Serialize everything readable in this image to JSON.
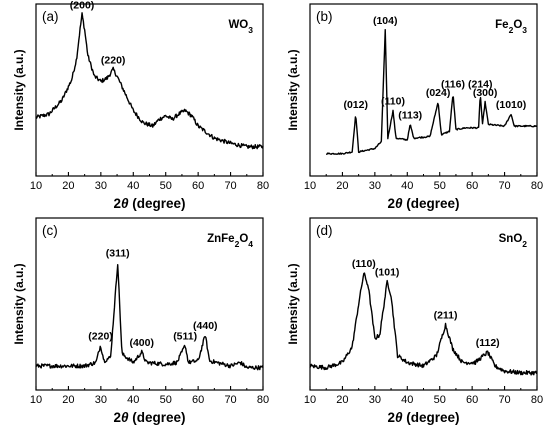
{
  "chart_data": [
    {
      "type": "line",
      "panel": "(a)",
      "material": "WO3",
      "material_parts": [
        {
          "t": "WO",
          "sub": false
        },
        {
          "t": "3",
          "sub": true
        }
      ],
      "xlabel": "2θ (degree)",
      "xlabel_parts": [
        {
          "t": "2",
          "it": false
        },
        {
          "t": "θ",
          "it": true
        },
        {
          "t": " (degree)",
          "it": false
        }
      ],
      "ylabel": "Intensity (a.u.)",
      "xlim": [
        10,
        80
      ],
      "ylim": [
        0,
        1
      ],
      "xticks": [
        "10",
        "20",
        "30",
        "40",
        "50",
        "60",
        "70",
        "80"
      ],
      "series": [
        {
          "values": [
            [
              10,
              0.34
            ],
            [
              14,
              0.36
            ],
            [
              18,
              0.44
            ],
            [
              21,
              0.56
            ],
            [
              22.5,
              0.68
            ],
            [
              23.5,
              0.84
            ],
            [
              24.2,
              0.94
            ],
            [
              25,
              0.85
            ],
            [
              26,
              0.7
            ],
            [
              28,
              0.58
            ],
            [
              30,
              0.55
            ],
            [
              32,
              0.57
            ],
            [
              33.8,
              0.62
            ],
            [
              35,
              0.58
            ],
            [
              37,
              0.5
            ],
            [
              40,
              0.38
            ],
            [
              43,
              0.31
            ],
            [
              46,
              0.29
            ],
            [
              48,
              0.33
            ],
            [
              50,
              0.35
            ],
            [
              52,
              0.33
            ],
            [
              54,
              0.36
            ],
            [
              56,
              0.38
            ],
            [
              58,
              0.35
            ],
            [
              60,
              0.29
            ],
            [
              65,
              0.22
            ],
            [
              70,
              0.19
            ],
            [
              75,
              0.17
            ],
            [
              80,
              0.17
            ]
          ]
        }
      ],
      "peak_labels": [
        {
          "text": "(200)",
          "x": 24.2,
          "y": 0.94
        },
        {
          "text": "(220)",
          "x": 33.8,
          "y": 0.62
        }
      ]
    },
    {
      "type": "line",
      "panel": "(b)",
      "material": "Fe2O3",
      "material_parts": [
        {
          "t": "Fe",
          "sub": false
        },
        {
          "t": "2",
          "sub": true
        },
        {
          "t": "O",
          "sub": false
        },
        {
          "t": "3",
          "sub": true
        }
      ],
      "xlabel": "2θ (degree)",
      "xlabel_parts": [
        {
          "t": "2",
          "it": false
        },
        {
          "t": "θ",
          "it": true
        },
        {
          "t": " (degree)",
          "it": false
        }
      ],
      "ylabel": "Intensity (a.u.)",
      "xlim": [
        10,
        80
      ],
      "ylim": [
        0,
        1
      ],
      "xticks": [
        "10",
        "20",
        "30",
        "40",
        "50",
        "60",
        "70",
        "80"
      ],
      "series": [
        {
          "values": [
            [
              15,
              0.13
            ],
            [
              20,
              0.13
            ],
            [
              23,
              0.14
            ],
            [
              24.1,
              0.36
            ],
            [
              25,
              0.14
            ],
            [
              30,
              0.16
            ],
            [
              32,
              0.2
            ],
            [
              33.2,
              0.85
            ],
            [
              34,
              0.22
            ],
            [
              35.6,
              0.38
            ],
            [
              36.5,
              0.22
            ],
            [
              40,
              0.21
            ],
            [
              40.9,
              0.3
            ],
            [
              42,
              0.22
            ],
            [
              47,
              0.23
            ],
            [
              49.5,
              0.43
            ],
            [
              50.5,
              0.24
            ],
            [
              53,
              0.26
            ],
            [
              54.1,
              0.48
            ],
            [
              55,
              0.27
            ],
            [
              58,
              0.28
            ],
            [
              62,
              0.28
            ],
            [
              62.5,
              0.48
            ],
            [
              63.2,
              0.3
            ],
            [
              64,
              0.43
            ],
            [
              65,
              0.3
            ],
            [
              70,
              0.29
            ],
            [
              72,
              0.36
            ],
            [
              73,
              0.29
            ],
            [
              80,
              0.29
            ]
          ]
        }
      ],
      "peak_labels": [
        {
          "text": "(012)",
          "x": 24.1,
          "y": 0.36
        },
        {
          "text": "(104)",
          "x": 33.2,
          "y": 0.85
        },
        {
          "text": "(110)",
          "x": 35.6,
          "y": 0.38
        },
        {
          "text": "(113)",
          "x": 40.9,
          "y": 0.3
        },
        {
          "text": "(024)",
          "x": 49.5,
          "y": 0.43
        },
        {
          "text": "(116)",
          "x": 54.1,
          "y": 0.48
        },
        {
          "text": "(214)",
          "x": 62.5,
          "y": 0.48
        },
        {
          "text": "(300)",
          "x": 64.0,
          "y": 0.43
        },
        {
          "text": "(1010)",
          "x": 72.0,
          "y": 0.36
        }
      ]
    },
    {
      "type": "line",
      "panel": "(c)",
      "material": "ZnFe2O4",
      "material_parts": [
        {
          "t": "ZnFe",
          "sub": false
        },
        {
          "t": "2",
          "sub": true
        },
        {
          "t": "O",
          "sub": false
        },
        {
          "t": "4",
          "sub": true
        }
      ],
      "xlabel": "2θ (degree)",
      "xlabel_parts": [
        {
          "t": "2",
          "it": false
        },
        {
          "t": "θ",
          "it": true
        },
        {
          "t": " (degree)",
          "it": false
        }
      ],
      "ylabel": "Intensity (a.u.)",
      "xlim": [
        10,
        80
      ],
      "ylim": [
        0,
        1
      ],
      "xticks": [
        "10",
        "20",
        "30",
        "40",
        "50",
        "60",
        "70",
        "80"
      ],
      "series": [
        {
          "values": [
            [
              10,
              0.14
            ],
            [
              25,
              0.14
            ],
            [
              28.5,
              0.16
            ],
            [
              29.9,
              0.26
            ],
            [
              31,
              0.17
            ],
            [
              33,
              0.19
            ],
            [
              35.2,
              0.74
            ],
            [
              36.5,
              0.21
            ],
            [
              40,
              0.16
            ],
            [
              42.6,
              0.22
            ],
            [
              44,
              0.16
            ],
            [
              50,
              0.15
            ],
            [
              53.5,
              0.16
            ],
            [
              56,
              0.26
            ],
            [
              57,
              0.16
            ],
            [
              60,
              0.17
            ],
            [
              62.2,
              0.32
            ],
            [
              63.5,
              0.17
            ],
            [
              70,
              0.14
            ],
            [
              73,
              0.16
            ],
            [
              75,
              0.13
            ],
            [
              80,
              0.13
            ]
          ]
        }
      ],
      "peak_labels": [
        {
          "text": "(220)",
          "x": 29.9,
          "y": 0.26
        },
        {
          "text": "(311)",
          "x": 35.2,
          "y": 0.74
        },
        {
          "text": "(400)",
          "x": 42.6,
          "y": 0.22
        },
        {
          "text": "(511)",
          "x": 56.0,
          "y": 0.26
        },
        {
          "text": "(440)",
          "x": 62.2,
          "y": 0.32
        }
      ]
    },
    {
      "type": "line",
      "panel": "(d)",
      "material": "SnO2",
      "material_parts": [
        {
          "t": "SnO",
          "sub": false
        },
        {
          "t": "2",
          "sub": true
        }
      ],
      "xlabel": "2θ (degree)",
      "xlabel_parts": [
        {
          "t": "2",
          "it": false
        },
        {
          "t": "θ",
          "it": true
        },
        {
          "t": " (degree)",
          "it": false
        }
      ],
      "ylabel": "Intensity (a.u.)",
      "xlim": [
        10,
        80
      ],
      "ylim": [
        0,
        1
      ],
      "xticks": [
        "10",
        "20",
        "30",
        "40",
        "50",
        "60",
        "70",
        "80"
      ],
      "series": [
        {
          "values": [
            [
              10,
              0.14
            ],
            [
              15,
              0.13
            ],
            [
              20,
              0.16
            ],
            [
              23,
              0.25
            ],
            [
              25,
              0.5
            ],
            [
              26.6,
              0.68
            ],
            [
              28,
              0.6
            ],
            [
              30,
              0.3
            ],
            [
              31.5,
              0.32
            ],
            [
              33.8,
              0.63
            ],
            [
              35,
              0.55
            ],
            [
              37,
              0.2
            ],
            [
              40,
              0.16
            ],
            [
              45,
              0.14
            ],
            [
              49,
              0.2
            ],
            [
              51.8,
              0.38
            ],
            [
              54,
              0.24
            ],
            [
              57,
              0.16
            ],
            [
              61,
              0.16
            ],
            [
              64.8,
              0.22
            ],
            [
              67,
              0.14
            ],
            [
              70,
              0.11
            ],
            [
              75,
              0.1
            ],
            [
              80,
              0.1
            ]
          ]
        }
      ],
      "peak_labels": [
        {
          "text": "(110)",
          "x": 26.6,
          "y": 0.68
        },
        {
          "text": "(101)",
          "x": 33.8,
          "y": 0.63
        },
        {
          "text": "(211)",
          "x": 51.8,
          "y": 0.38
        },
        {
          "text": "(112)",
          "x": 64.8,
          "y": 0.22
        }
      ]
    }
  ]
}
